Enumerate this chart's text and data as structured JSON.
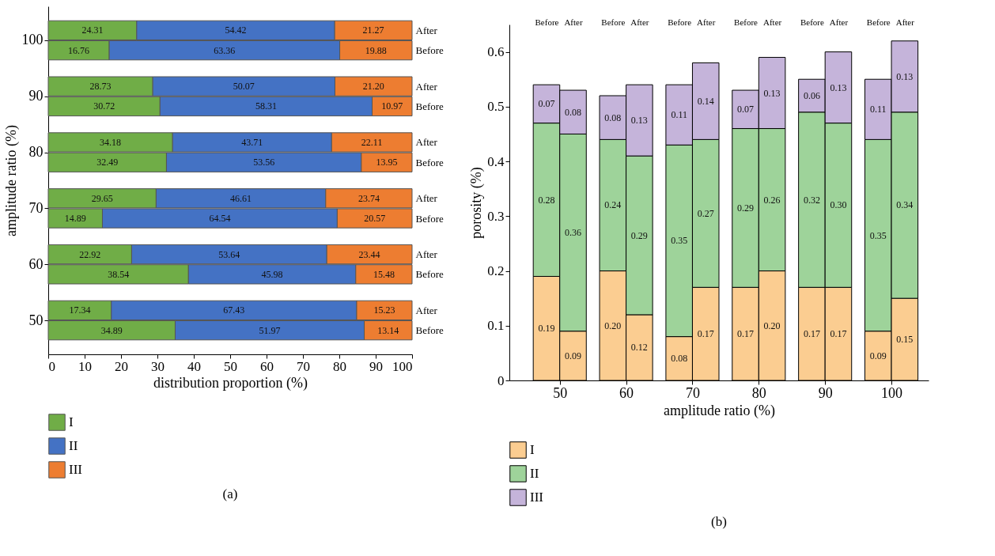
{
  "chart_data": [
    {
      "type": "bar",
      "orientation": "horizontal",
      "stacked": true,
      "title": "(a)",
      "xlabel": "distribution proportion (%)",
      "ylabel": "amplitude ratio (%)",
      "categories": [
        "After",
        "Before",
        "After",
        "Before",
        "After",
        "Before",
        "After",
        "Before",
        "After",
        "Before",
        "After",
        "Before"
      ],
      "annotations": [
        "100",
        "90",
        "80",
        "70",
        "60",
        "50"
      ],
      "series": [
        {
          "name": "I",
          "color": "#70ad47",
          "values": [
            24.31,
            16.76,
            28.73,
            30.72,
            34.18,
            32.49,
            29.65,
            14.89,
            22.92,
            38.54,
            17.34,
            34.89
          ],
          "value_labels": [
            "24.31",
            "16.76",
            "28.73",
            "30.72",
            "34.18",
            "32.49",
            "29.65",
            "14.89",
            "22.92",
            "38.54",
            "17.34",
            "34.89"
          ]
        },
        {
          "name": "II",
          "color": "#4472c4",
          "values": [
            54.42,
            63.36,
            50.07,
            58.31,
            43.71,
            53.56,
            46.61,
            64.54,
            53.64,
            45.98,
            67.43,
            51.97
          ],
          "value_labels": [
            "54.42",
            "63.36",
            "50.07",
            "58.31",
            "43.71",
            "53.56",
            "46.61",
            "64.54",
            "53.64",
            "45.98",
            "67.43",
            "51.97"
          ]
        },
        {
          "name": "III",
          "color": "#ed7d31",
          "values": [
            21.27,
            19.88,
            21.2,
            10.97,
            22.11,
            13.95,
            23.74,
            20.57,
            23.44,
            15.48,
            15.23,
            13.14
          ],
          "value_labels": [
            "21.27",
            "19.88",
            "21.20",
            "10.97",
            "22.11",
            "13.95",
            "23.74",
            "20.57",
            "23.44",
            "15.48",
            "15.23",
            "13.14"
          ]
        }
      ],
      "xlim": [
        0,
        100
      ],
      "xticks": [
        0,
        10,
        20,
        30,
        40,
        50,
        60,
        70,
        80,
        90,
        100
      ],
      "legend": "bottom",
      "grid": false
    },
    {
      "type": "bar",
      "stacked": true,
      "title": "(b)",
      "xlabel": "amplitude ratio (%)",
      "ylabel": "porosity (%)",
      "categories": [
        "Before",
        "After",
        "Before",
        "After",
        "Before",
        "After",
        "Before",
        "After",
        "Before",
        "After",
        "Before",
        "After"
      ],
      "annotations": [
        "50",
        "60",
        "70",
        "80",
        "90",
        "100"
      ],
      "series": [
        {
          "name": "I",
          "color": "#fbcd91",
          "values": [
            0.19,
            0.09,
            0.2,
            0.12,
            0.08,
            0.17,
            0.17,
            0.2,
            0.17,
            0.17,
            0.09,
            0.15
          ],
          "value_labels": [
            "0.19",
            "0.09",
            "0.20",
            "0.12",
            "0.08",
            "0.17",
            "0.17",
            "0.20",
            "0.17",
            "0.17",
            "0.09",
            "0.15"
          ]
        },
        {
          "name": "II",
          "color": "#9ed39a",
          "values": [
            0.28,
            0.36,
            0.24,
            0.29,
            0.35,
            0.27,
            0.29,
            0.26,
            0.32,
            0.3,
            0.35,
            0.34
          ],
          "value_labels": [
            "0.28",
            "0.36",
            "0.24",
            "0.29",
            "0.35",
            "0.27",
            "0.29",
            "0.26",
            "0.32",
            "0.30",
            "0.35",
            "0.34"
          ]
        },
        {
          "name": "III",
          "color": "#c5b4da",
          "values": [
            0.07,
            0.08,
            0.08,
            0.13,
            0.11,
            0.14,
            0.07,
            0.13,
            0.06,
            0.13,
            0.11,
            0.13
          ],
          "value_labels": [
            "0.07",
            "0.08",
            "0.08",
            "0.13",
            "0.11",
            "0.14",
            "0.07",
            "0.13",
            "0.06",
            "0.13",
            "0.11",
            "0.13"
          ]
        }
      ],
      "ylim": [
        0,
        0.65
      ],
      "yticks": [
        0,
        0.1,
        0.2,
        0.3,
        0.4,
        0.5,
        0.6
      ],
      "legend": "bottom",
      "grid": false
    }
  ]
}
